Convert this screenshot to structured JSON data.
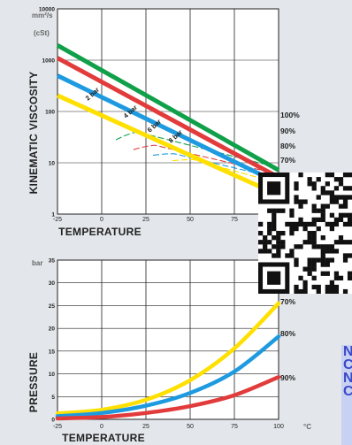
{
  "chart_data": [
    {
      "type": "line",
      "title": "",
      "ylabel": "KINEMATIC VISCOSITY",
      "y_unit_line1": "mm²/s",
      "y_unit_line2": "(cSt)",
      "xlabel": "TEMPERATURE",
      "x_ticks": [
        "-25",
        "0",
        "25",
        "50",
        "75"
      ],
      "y_ticks": [
        "10000",
        "1000",
        "100",
        "10",
        "1"
      ],
      "xlim": [
        -25,
        100
      ],
      "ylim": [
        1,
        10000
      ],
      "yscale": "log",
      "series": [
        {
          "name": "100%",
          "color": "#11a04a",
          "x": [
            -25,
            100
          ],
          "y": [
            1950,
            7.2
          ]
        },
        {
          "name": "90%",
          "color": "#e23b3b",
          "x": [
            -25,
            100
          ],
          "y": [
            1100,
            5.2
          ]
        },
        {
          "name": "80%",
          "color": "#1e9ae0",
          "x": [
            -25,
            100
          ],
          "y": [
            500,
            4.0
          ]
        },
        {
          "name": "70%",
          "color": "#ffe000",
          "x": [
            -25,
            100
          ],
          "y": [
            205,
            2.35
          ]
        }
      ],
      "pressure_curves": [
        {
          "name": "2 bar",
          "x": [
            8,
            14,
            20,
            100
          ],
          "y": [
            28,
            36,
            40,
            8
          ]
        },
        {
          "name": "4 bar",
          "x": [
            18,
            24,
            30,
            100
          ],
          "y": [
            18,
            21,
            22,
            6
          ]
        },
        {
          "name": "6 bar",
          "x": [
            29,
            35,
            41,
            100
          ],
          "y": [
            14,
            15,
            15,
            5
          ]
        },
        {
          "name": "8 bar",
          "x": [
            40,
            46,
            52,
            100
          ],
          "y": [
            11,
            11.5,
            11.5,
            4
          ]
        }
      ]
    },
    {
      "type": "line",
      "title": "",
      "ylabel": "PRESSURE",
      "y_unit": "bar",
      "xlabel": "TEMPERATURE",
      "x_unit": "°C",
      "x_ticks": [
        "-25",
        "0",
        "25",
        "50",
        "75",
        "100"
      ],
      "y_ticks": [
        "0",
        "5",
        "10",
        "15",
        "20",
        "25",
        "30",
        "35"
      ],
      "xlim": [
        -25,
        100
      ],
      "ylim": [
        0,
        35
      ],
      "series": [
        {
          "name": "70%",
          "color": "#ffe000",
          "x": [
            -25,
            0,
            25,
            50,
            75,
            100
          ],
          "y": [
            1.3,
            2.1,
            4.3,
            8.6,
            15.6,
            25.5
          ]
        },
        {
          "name": "80%",
          "color": "#1e9ae0",
          "x": [
            -25,
            0,
            25,
            50,
            75,
            100
          ],
          "y": [
            0.7,
            1.4,
            3.0,
            5.8,
            10.5,
            18.2
          ]
        },
        {
          "name": "90%",
          "color": "#e23b3b",
          "x": [
            -25,
            0,
            25,
            50,
            75,
            100
          ],
          "y": [
            0.2,
            0.5,
            1.4,
            2.9,
            5.3,
            9.3
          ]
        }
      ]
    }
  ],
  "side_letters": [
    "N",
    "C",
    "N",
    "C"
  ]
}
